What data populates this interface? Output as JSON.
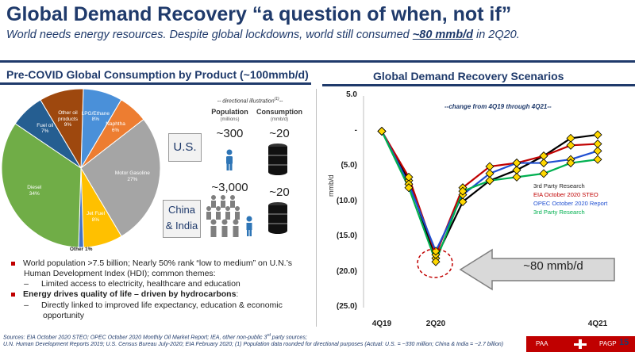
{
  "header": {
    "title": "Global Demand Recovery “a question of when, not if”",
    "subtitle_pre": "World needs energy resources.  Despite global lockdowns, world still consumed ",
    "subtitle_bold": "~80 mmb/d",
    "subtitle_post": " in 2Q20."
  },
  "left": {
    "section_title": "Pre-COVID Global Consumption by Product (~100mmb/d)",
    "pie": {
      "slices": [
        {
          "label": "LPG/Ethane",
          "pct": "8%",
          "value": 8,
          "color": "#4a90d9"
        },
        {
          "label": "Naphtha",
          "pct": "6%",
          "value": 6,
          "color": "#ed7d31"
        },
        {
          "label": "Motor Gasoline",
          "pct": "27%",
          "value": 27,
          "color": "#a5a5a5"
        },
        {
          "label": "Jet Fuel",
          "pct": "8%",
          "value": 8,
          "color": "#ffc000"
        },
        {
          "label": "Other",
          "pct": "1%",
          "value": 1,
          "color": "#4472c4"
        },
        {
          "label": "Diesel",
          "pct": "34%",
          "value": 34,
          "color": "#70ad47"
        },
        {
          "label": "Fuel oil",
          "pct": "7%",
          "value": 7,
          "color": "#255e91"
        },
        {
          "label": "Other oil products",
          "pct": "9%",
          "value": 9,
          "color": "#9e480e"
        }
      ]
    },
    "illustration": {
      "note": "-- directional illustration",
      "note_sup": "(1)",
      "note_end": "--",
      "col_population": "Population",
      "col_population_unit": "(millions)",
      "col_consumption": "Consumption",
      "col_consumption_unit": "(mmb/d)",
      "rows": [
        {
          "region": "U.S.",
          "population": "~300",
          "consumption": "~20"
        },
        {
          "region": "China & India",
          "population": "~3,000",
          "consumption": "~20"
        }
      ]
    },
    "bullets": [
      {
        "level": 1,
        "text": "World population >7.5 billion; Nearly 50% rank “low to medium” on U.N.’s Human Development Index (HDI); common themes:",
        "bold": false
      },
      {
        "level": 2,
        "text": "Limited access to electricity, healthcare and education",
        "bold": false
      },
      {
        "level": 1,
        "text": "Energy drives quality of life – driven by hydrocarbons",
        "suffix": ":",
        "bold": true
      },
      {
        "level": 2,
        "text": "Directly linked to improved life expectancy, education & economic opportunity",
        "bold": false
      }
    ]
  },
  "right": {
    "section_title": "Global Demand Recovery Scenarios",
    "callout": "~80 mmb/d"
  },
  "chart_data": {
    "type": "line",
    "title": "",
    "annotation": "--change from 4Q19 through 4Q21--",
    "ylabel": "mmb/d",
    "xlabel": "",
    "ylim": [
      -25,
      5
    ],
    "yticks": [
      "5.0",
      "-",
      "(5.0)",
      "(10.0)",
      "(15.0)",
      "(20.0)",
      "(25.0)"
    ],
    "x": [
      "4Q19",
      "1Q20",
      "2Q20",
      "3Q20",
      "4Q20",
      "1Q21",
      "2Q21",
      "3Q21",
      "4Q21"
    ],
    "x_tick_labels": [
      "4Q19",
      "2Q20",
      "4Q21"
    ],
    "series": [
      {
        "name": "3rd Party Research",
        "color": "#000000",
        "values": [
          0,
          -7.0,
          -18.0,
          -10.0,
          -7.0,
          -5.5,
          -3.5,
          -1.0,
          -0.5
        ]
      },
      {
        "name": "EIA October 2020 STEO",
        "color": "#c00000",
        "values": [
          0,
          -6.5,
          -17.5,
          -8.0,
          -5.0,
          -4.5,
          -3.5,
          -2.0,
          -1.8
        ]
      },
      {
        "name": "OPEC October 2020 Report",
        "color": "#1f4fd1",
        "values": [
          0,
          -7.5,
          -17.0,
          -9.0,
          -6.0,
          -4.5,
          -4.5,
          -4.0,
          -2.8
        ]
      },
      {
        "name": "3rd Party Research",
        "color": "#00b050",
        "values": [
          0,
          -8.0,
          -18.5,
          -8.5,
          -7.0,
          -6.5,
          -6.0,
          -4.5,
          -4.0
        ]
      }
    ],
    "legend_position": "right",
    "grid": false
  },
  "sources": {
    "line1_a": "Sources: EIA October 2020 STEO; OPEC October 2020 Monthly Oil Market Report; IEA, other non-public 3",
    "line1_sup": "rd",
    "line1_b": " party sources;",
    "line2": "U.N. Human Development Reports 2019; U.S. Census Bureau July-2020; EIA February 2020; (1) Population data rounded for directional purposes (Actual: U.S. = ~330 million; China & India = ~2.7 billion)"
  },
  "footer": {
    "ticker1": "PAA",
    "ticker2": "PAGP",
    "page": "15"
  }
}
